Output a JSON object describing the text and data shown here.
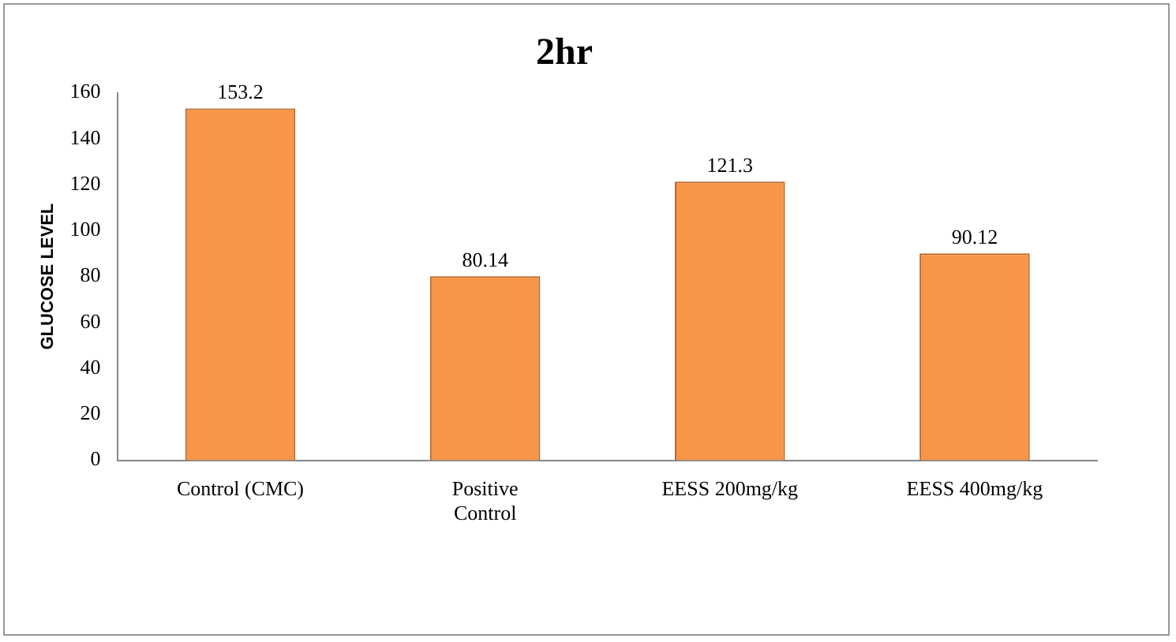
{
  "chart_data": {
    "type": "bar",
    "title": "2hr",
    "ylabel": "GLUCOSE LEVEL",
    "categories": [
      "Control (CMC)",
      "Positive\nControl",
      "EESS 200mg/kg",
      "EESS 400mg/kg"
    ],
    "values": [
      153.2,
      80.14,
      121.3,
      90.12
    ],
    "color": "#f79646",
    "ylim": [
      0,
      160
    ],
    "yticks": [
      0,
      20,
      40,
      60,
      80,
      100,
      120,
      140,
      160
    ],
    "grid": false,
    "data_labels": true,
    "legend": false
  }
}
